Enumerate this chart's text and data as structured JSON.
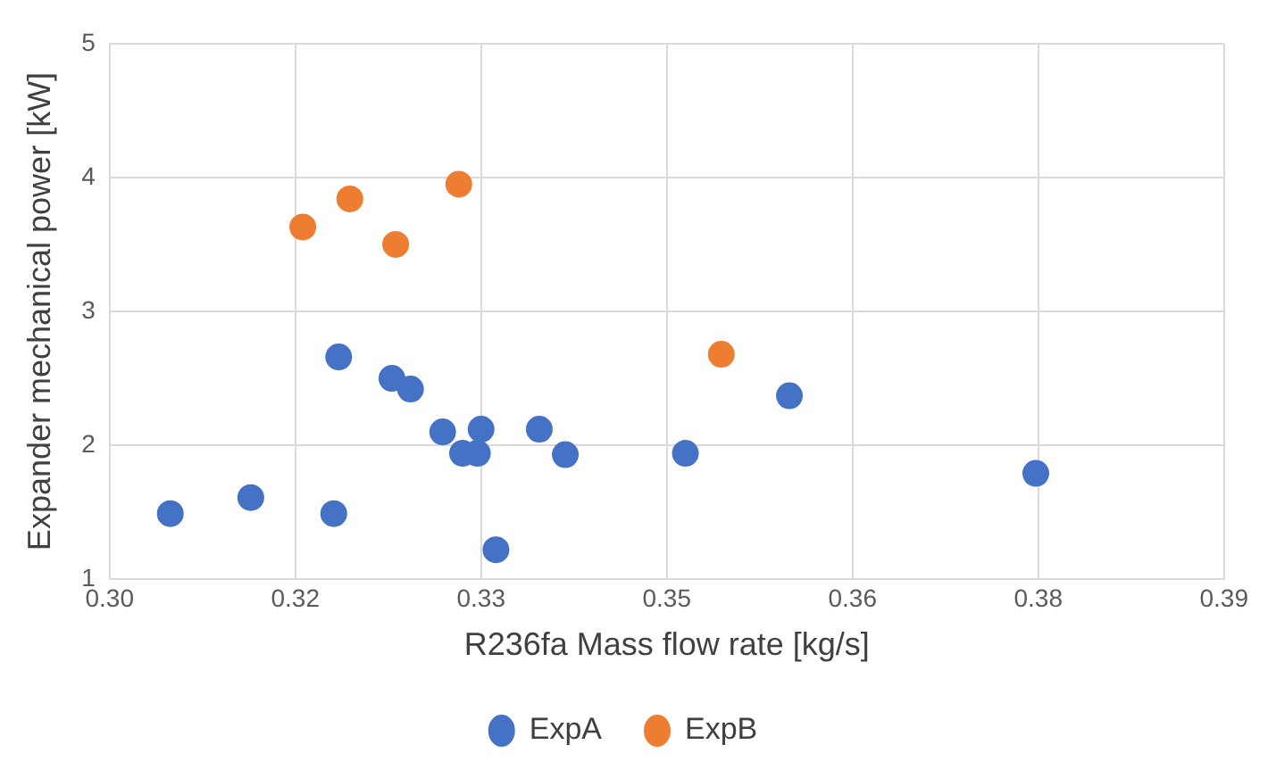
{
  "chart_data": {
    "type": "scatter",
    "xlabel": "R236fa Mass flow rate [kg/s]",
    "ylabel": "Expander mechanical power [kW]",
    "xlim": [
      0.3,
      0.39
    ],
    "xticks": [
      {
        "value": 0.3,
        "label": "0.30"
      },
      {
        "value": 0.315,
        "label": "0.32"
      },
      {
        "value": 0.33,
        "label": "0.33"
      },
      {
        "value": 0.345,
        "label": "0.35"
      },
      {
        "value": 0.36,
        "label": "0.36"
      },
      {
        "value": 0.375,
        "label": "0.38"
      },
      {
        "value": 0.39,
        "label": "0.39"
      }
    ],
    "ylim": [
      1,
      5
    ],
    "yticks": [
      1,
      2,
      3,
      4,
      5
    ],
    "grid": true,
    "legend": "bottom",
    "marker": "circle",
    "series": [
      {
        "name": "ExpA",
        "color": "#4472c4",
        "x": [
          0.3049,
          0.3114,
          0.3181,
          0.3185,
          0.3228,
          0.3243,
          0.3269,
          0.3285,
          0.3297,
          0.33,
          0.3312,
          0.3347,
          0.3368,
          0.3465,
          0.3549,
          0.3748
        ],
        "values": [
          1.49,
          1.61,
          1.49,
          2.66,
          2.5,
          2.42,
          2.1,
          1.94,
          1.94,
          2.12,
          1.22,
          2.12,
          1.93,
          1.94,
          2.37,
          1.79
        ]
      },
      {
        "name": "ExpB",
        "color": "#ed7d31",
        "x": [
          0.3156,
          0.3194,
          0.3231,
          0.3282,
          0.3494
        ],
        "values": [
          3.63,
          3.84,
          3.5,
          3.95,
          2.68
        ]
      }
    ]
  }
}
